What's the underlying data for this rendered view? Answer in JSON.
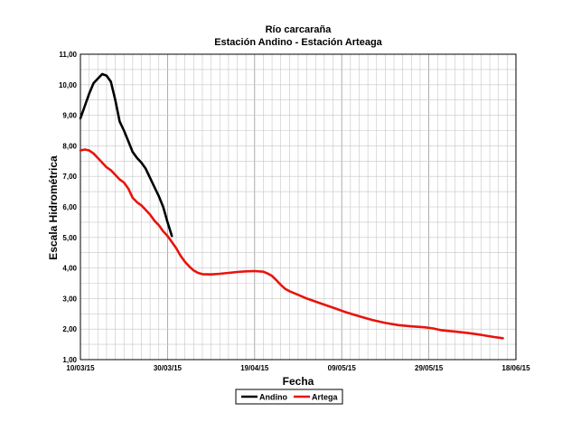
{
  "chart_data": {
    "type": "line",
    "title": "Río carcaraña",
    "subtitle": "Estación Andino - Estación Arteaga",
    "xlabel": "Fecha",
    "ylabel": "Escala Hidrométrica",
    "x_tick_labels": [
      "10/03/15",
      "30/03/15",
      "19/04/15",
      "09/05/15",
      "29/05/15",
      "18/06/15"
    ],
    "y_tick_labels": [
      "1,00",
      "2,00",
      "3,00",
      "4,00",
      "5,00",
      "6,00",
      "7,00",
      "8,00",
      "9,00",
      "10,00",
      "11,00"
    ],
    "ylim": [
      1,
      11
    ],
    "xlim_days": [
      0,
      100
    ],
    "grid": true,
    "legend_position": "bottom",
    "series": [
      {
        "name": "Andino",
        "color": "#000000",
        "points": [
          [
            0,
            8.9
          ],
          [
            1,
            9.3
          ],
          [
            2,
            9.7
          ],
          [
            3,
            10.05
          ],
          [
            4,
            10.2
          ],
          [
            5,
            10.35
          ],
          [
            6,
            10.3
          ],
          [
            7,
            10.1
          ],
          [
            8,
            9.5
          ],
          [
            9,
            8.8
          ],
          [
            10,
            8.5
          ],
          [
            11,
            8.15
          ],
          [
            12,
            7.8
          ],
          [
            13,
            7.6
          ],
          [
            14,
            7.45
          ],
          [
            15,
            7.25
          ],
          [
            16,
            6.95
          ],
          [
            17,
            6.65
          ],
          [
            18,
            6.35
          ],
          [
            19,
            6.0
          ],
          [
            20,
            5.5
          ],
          [
            21,
            5.05
          ]
        ]
      },
      {
        "name": "Artega",
        "color": "#e8140c",
        "points": [
          [
            0,
            7.85
          ],
          [
            1,
            7.88
          ],
          [
            2,
            7.85
          ],
          [
            3,
            7.75
          ],
          [
            4,
            7.6
          ],
          [
            5,
            7.45
          ],
          [
            6,
            7.3
          ],
          [
            7,
            7.2
          ],
          [
            8,
            7.05
          ],
          [
            9,
            6.9
          ],
          [
            10,
            6.8
          ],
          [
            11,
            6.6
          ],
          [
            12,
            6.3
          ],
          [
            13,
            6.15
          ],
          [
            14,
            6.05
          ],
          [
            15,
            5.9
          ],
          [
            16,
            5.75
          ],
          [
            17,
            5.55
          ],
          [
            18,
            5.4
          ],
          [
            19,
            5.2
          ],
          [
            20,
            5.05
          ],
          [
            21,
            4.85
          ],
          [
            22,
            4.65
          ],
          [
            23,
            4.4
          ],
          [
            24,
            4.2
          ],
          [
            25,
            4.05
          ],
          [
            26,
            3.92
          ],
          [
            27,
            3.84
          ],
          [
            28,
            3.8
          ],
          [
            30,
            3.79
          ],
          [
            32,
            3.81
          ],
          [
            34,
            3.84
          ],
          [
            36,
            3.87
          ],
          [
            38,
            3.89
          ],
          [
            40,
            3.9
          ],
          [
            42,
            3.88
          ],
          [
            43,
            3.82
          ],
          [
            44,
            3.74
          ],
          [
            45,
            3.6
          ],
          [
            46,
            3.45
          ],
          [
            47,
            3.32
          ],
          [
            48,
            3.24
          ],
          [
            50,
            3.12
          ],
          [
            52,
            3.0
          ],
          [
            55,
            2.85
          ],
          [
            58,
            2.7
          ],
          [
            61,
            2.55
          ],
          [
            64,
            2.42
          ],
          [
            67,
            2.3
          ],
          [
            70,
            2.2
          ],
          [
            73,
            2.13
          ],
          [
            76,
            2.09
          ],
          [
            79,
            2.06
          ],
          [
            81,
            2.02
          ],
          [
            83,
            1.96
          ],
          [
            86,
            1.92
          ],
          [
            89,
            1.87
          ],
          [
            92,
            1.81
          ],
          [
            95,
            1.74
          ],
          [
            97,
            1.7
          ]
        ]
      }
    ]
  }
}
